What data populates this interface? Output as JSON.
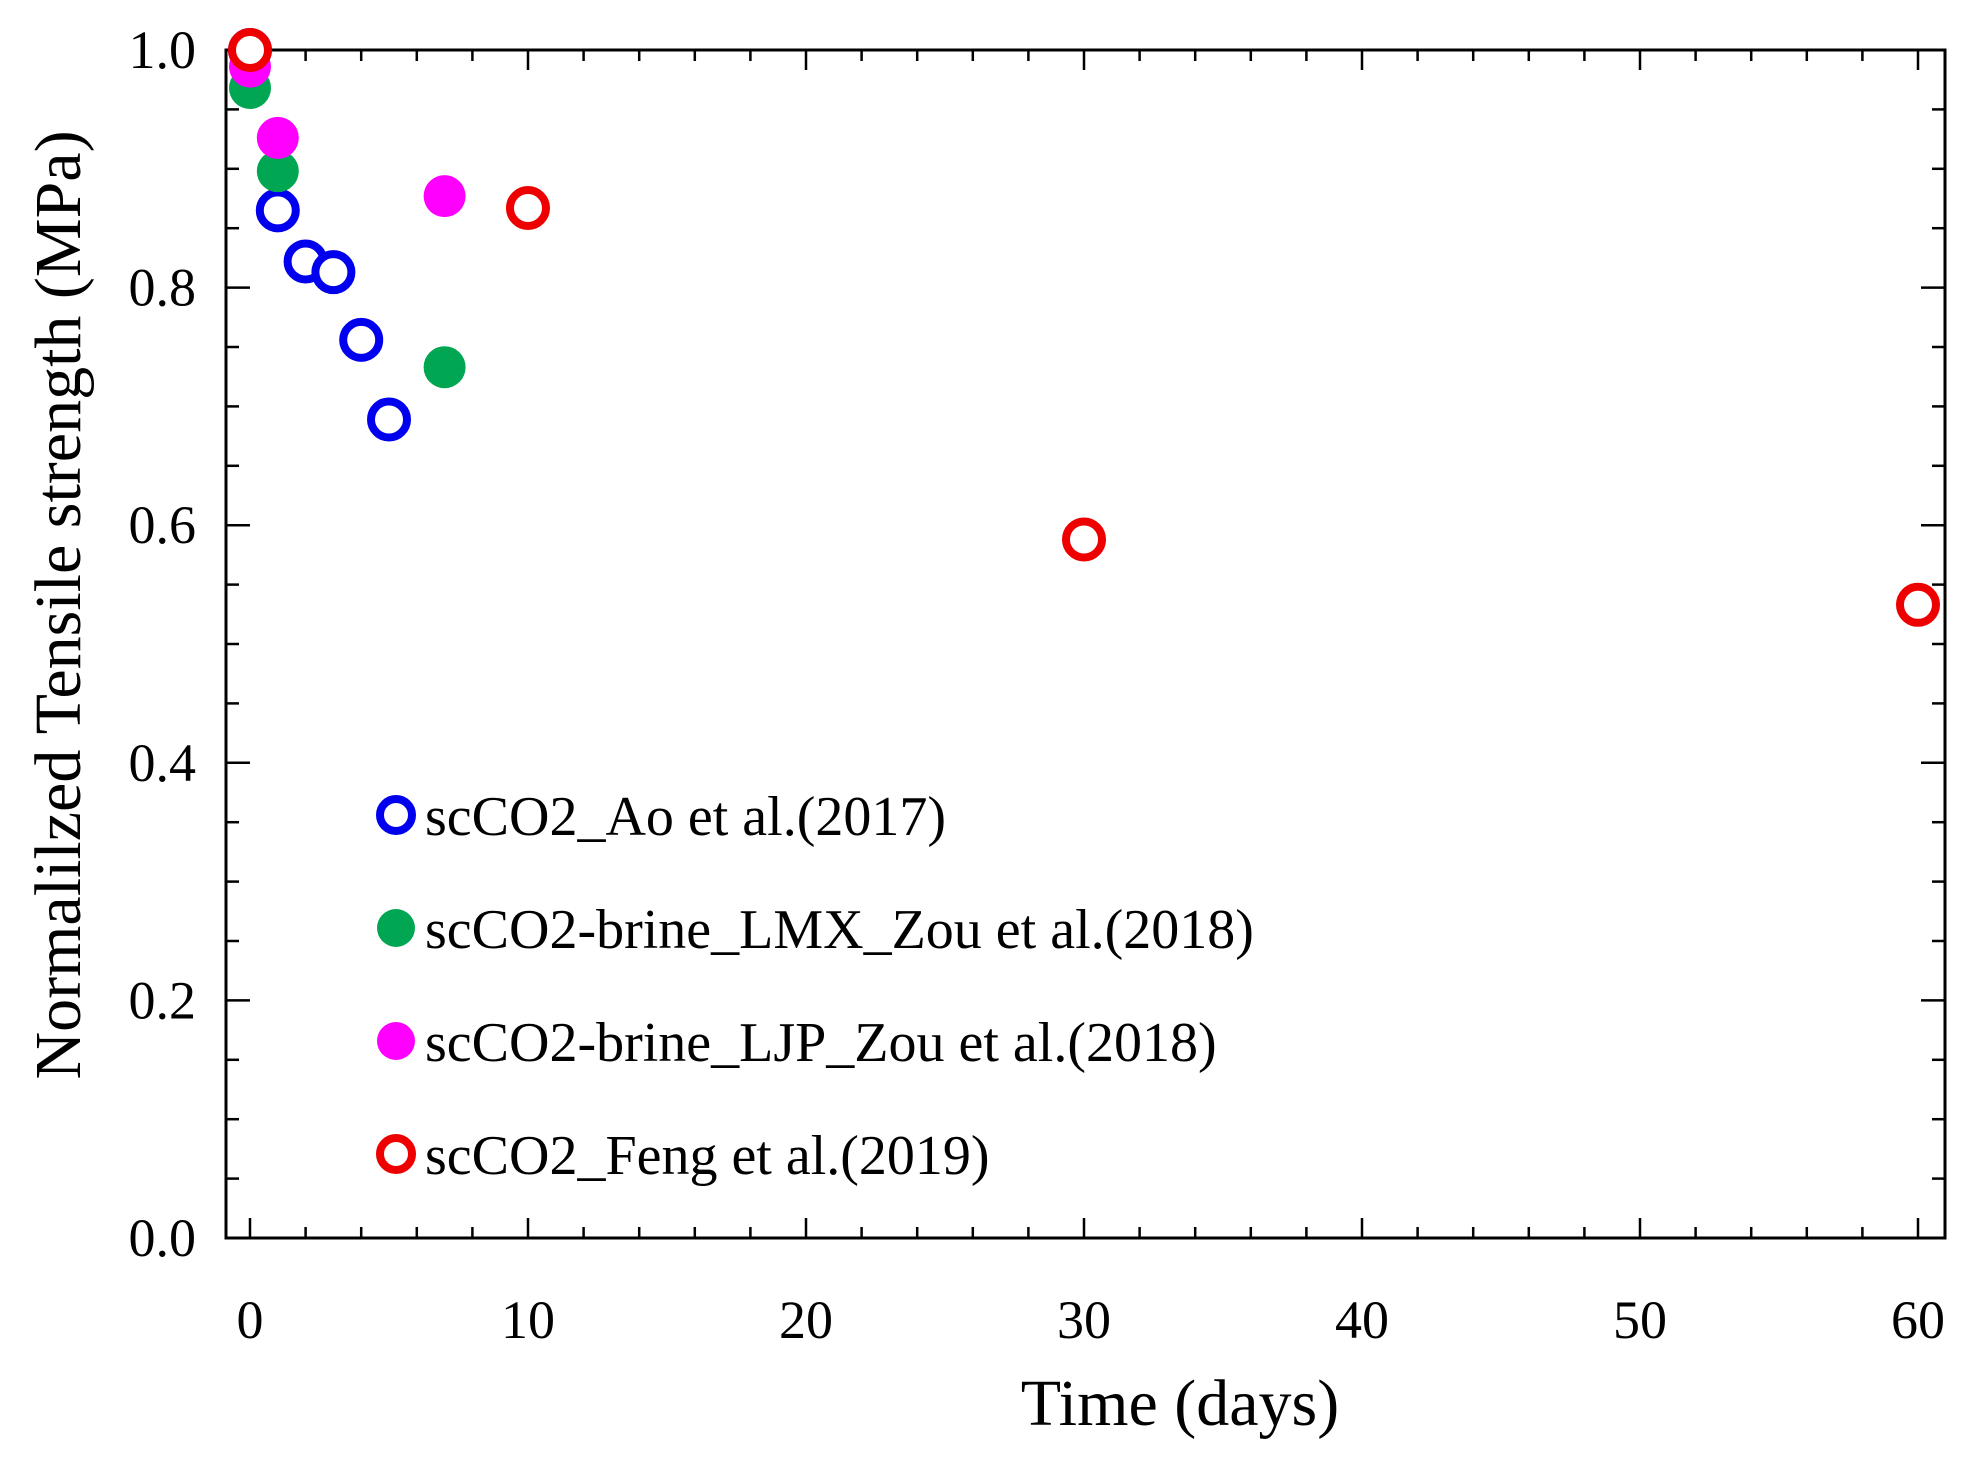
{
  "chart_data": {
    "type": "scatter",
    "xlabel": "Time (days)",
    "ylabel": "Normalilzed Tensile strength (MPa)",
    "xlim": [
      -0.5,
      61
    ],
    "ylim": [
      0,
      1.0
    ],
    "xticks": [
      0,
      10,
      20,
      30,
      40,
      50,
      60
    ],
    "xtick_labels": [
      "0",
      "10",
      "20",
      "30",
      "40",
      "50",
      "60"
    ],
    "yticks": [
      0.0,
      0.2,
      0.4,
      0.6,
      0.8,
      1.0
    ],
    "ytick_labels": [
      "0.0",
      "0.2",
      "0.4",
      "0.6",
      "0.8",
      "1.0"
    ],
    "grid": false,
    "legend_position": "bottom-left",
    "series": [
      {
        "name": "scCO2_Ao et al.(2017)",
        "marker": "hollow-circle",
        "color": "#0000ee",
        "points": [
          [
            0,
            1.0
          ],
          [
            1,
            0.865
          ],
          [
            2,
            0.822
          ],
          [
            3,
            0.813
          ],
          [
            4,
            0.756
          ],
          [
            5,
            0.689
          ]
        ]
      },
      {
        "name": "scCO2-brine_LMX_Zou et al.(2018)",
        "marker": "filled-circle",
        "color": "#00a651",
        "points": [
          [
            0,
            0.968
          ],
          [
            1,
            0.898
          ],
          [
            7,
            0.733
          ]
        ]
      },
      {
        "name": "scCO2-brine_LJP_Zou et al.(2018)",
        "marker": "filled-circle",
        "color": "#ff00ff",
        "points": [
          [
            0,
            0.986
          ],
          [
            1,
            0.926
          ],
          [
            7,
            0.877
          ]
        ]
      },
      {
        "name": "scCO2_Feng et al.(2019)",
        "marker": "hollow-circle",
        "color": "#ee0000",
        "points": [
          [
            0,
            1.0
          ],
          [
            10,
            0.867
          ],
          [
            30,
            0.588
          ],
          [
            60,
            0.533
          ]
        ]
      }
    ]
  }
}
